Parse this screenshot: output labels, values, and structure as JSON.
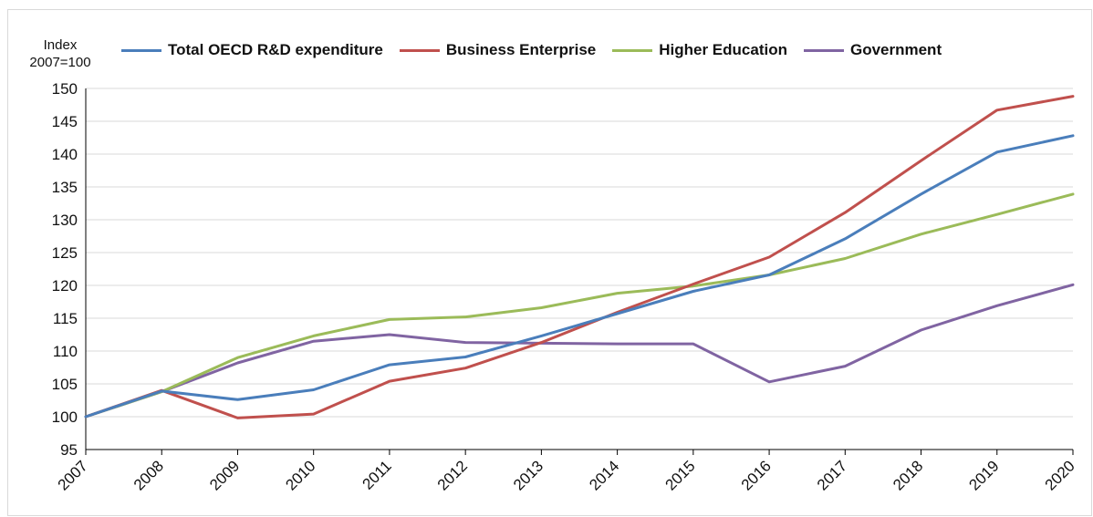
{
  "chart_data": {
    "type": "line",
    "ylabel_line1": "Index",
    "ylabel_line2": "2007=100",
    "x": [
      "2007",
      "2008",
      "2009",
      "2010",
      "2011",
      "2012",
      "2013",
      "2014",
      "2015",
      "2016",
      "2017",
      "2018",
      "2019",
      "2020"
    ],
    "ylim": [
      95,
      150
    ],
    "yticks": [
      95,
      100,
      105,
      110,
      115,
      120,
      125,
      130,
      135,
      140,
      145,
      150
    ],
    "grid": true,
    "legend_position": "top",
    "series": [
      {
        "name": "Total OECD R&D expenditure",
        "color": "#4a7ebb",
        "values": [
          100,
          103.9,
          102.6,
          104.1,
          107.9,
          109.1,
          112.3,
          115.7,
          119.1,
          121.6,
          127.1,
          133.9,
          140.3,
          142.8
        ]
      },
      {
        "name": "Business Enterprise",
        "color": "#c0504d",
        "values": [
          100,
          104.0,
          99.8,
          100.4,
          105.4,
          107.4,
          111.3,
          115.9,
          120.2,
          124.3,
          131.1,
          139.0,
          146.7,
          148.8
        ]
      },
      {
        "name": "Higher Education",
        "color": "#9bbb59",
        "values": [
          100,
          103.8,
          109.0,
          112.3,
          114.8,
          115.2,
          116.6,
          118.8,
          119.9,
          121.6,
          124.1,
          127.8,
          130.8,
          133.9
        ]
      },
      {
        "name": "Government",
        "color": "#8064a2",
        "values": [
          100,
          103.8,
          108.2,
          111.5,
          112.5,
          111.3,
          111.2,
          111.1,
          111.1,
          105.3,
          107.7,
          113.2,
          116.9,
          120.1
        ]
      }
    ]
  }
}
